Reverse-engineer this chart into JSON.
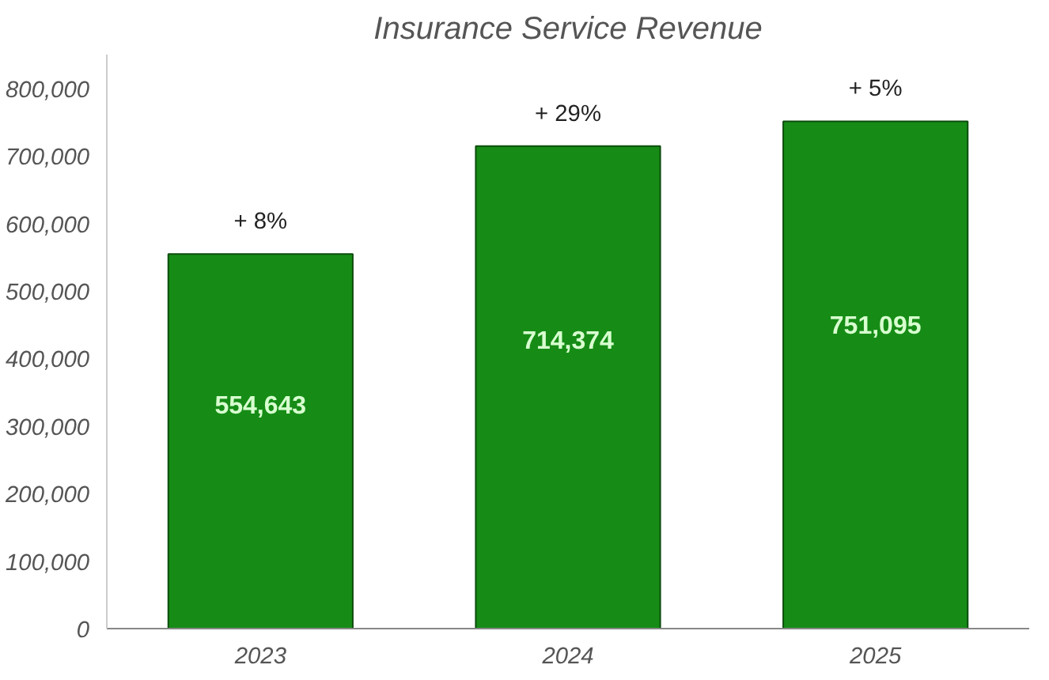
{
  "chart_data": {
    "type": "bar",
    "title": "Insurance Service Revenue",
    "categories": [
      "2023",
      "2024",
      "2025"
    ],
    "values": [
      554643,
      714374,
      751095
    ],
    "value_labels": [
      "554,643",
      "714,374",
      "751,095"
    ],
    "color": "#168c16",
    "ylim": [
      0,
      850000
    ],
    "yticks": [
      {
        "value": 0,
        "label": "0"
      },
      {
        "value": 100000,
        "label": "100,000"
      },
      {
        "value": 200000,
        "label": "200,000"
      },
      {
        "value": 300000,
        "label": "300,000"
      },
      {
        "value": 400000,
        "label": "400,000"
      },
      {
        "value": 500000,
        "label": "500,000"
      },
      {
        "value": 600000,
        "label": "600,000"
      },
      {
        "value": 700000,
        "label": "700,000"
      },
      {
        "value": 800000,
        "label": "800,000"
      }
    ],
    "annotations": [
      {
        "text": "+ 8%",
        "x": "2023",
        "y": 554643
      },
      {
        "text": "+ 29%",
        "x": "2024",
        "y": 714374
      },
      {
        "text": "+ 5%",
        "x": "2025",
        "y": 751095
      }
    ],
    "grid": false
  }
}
